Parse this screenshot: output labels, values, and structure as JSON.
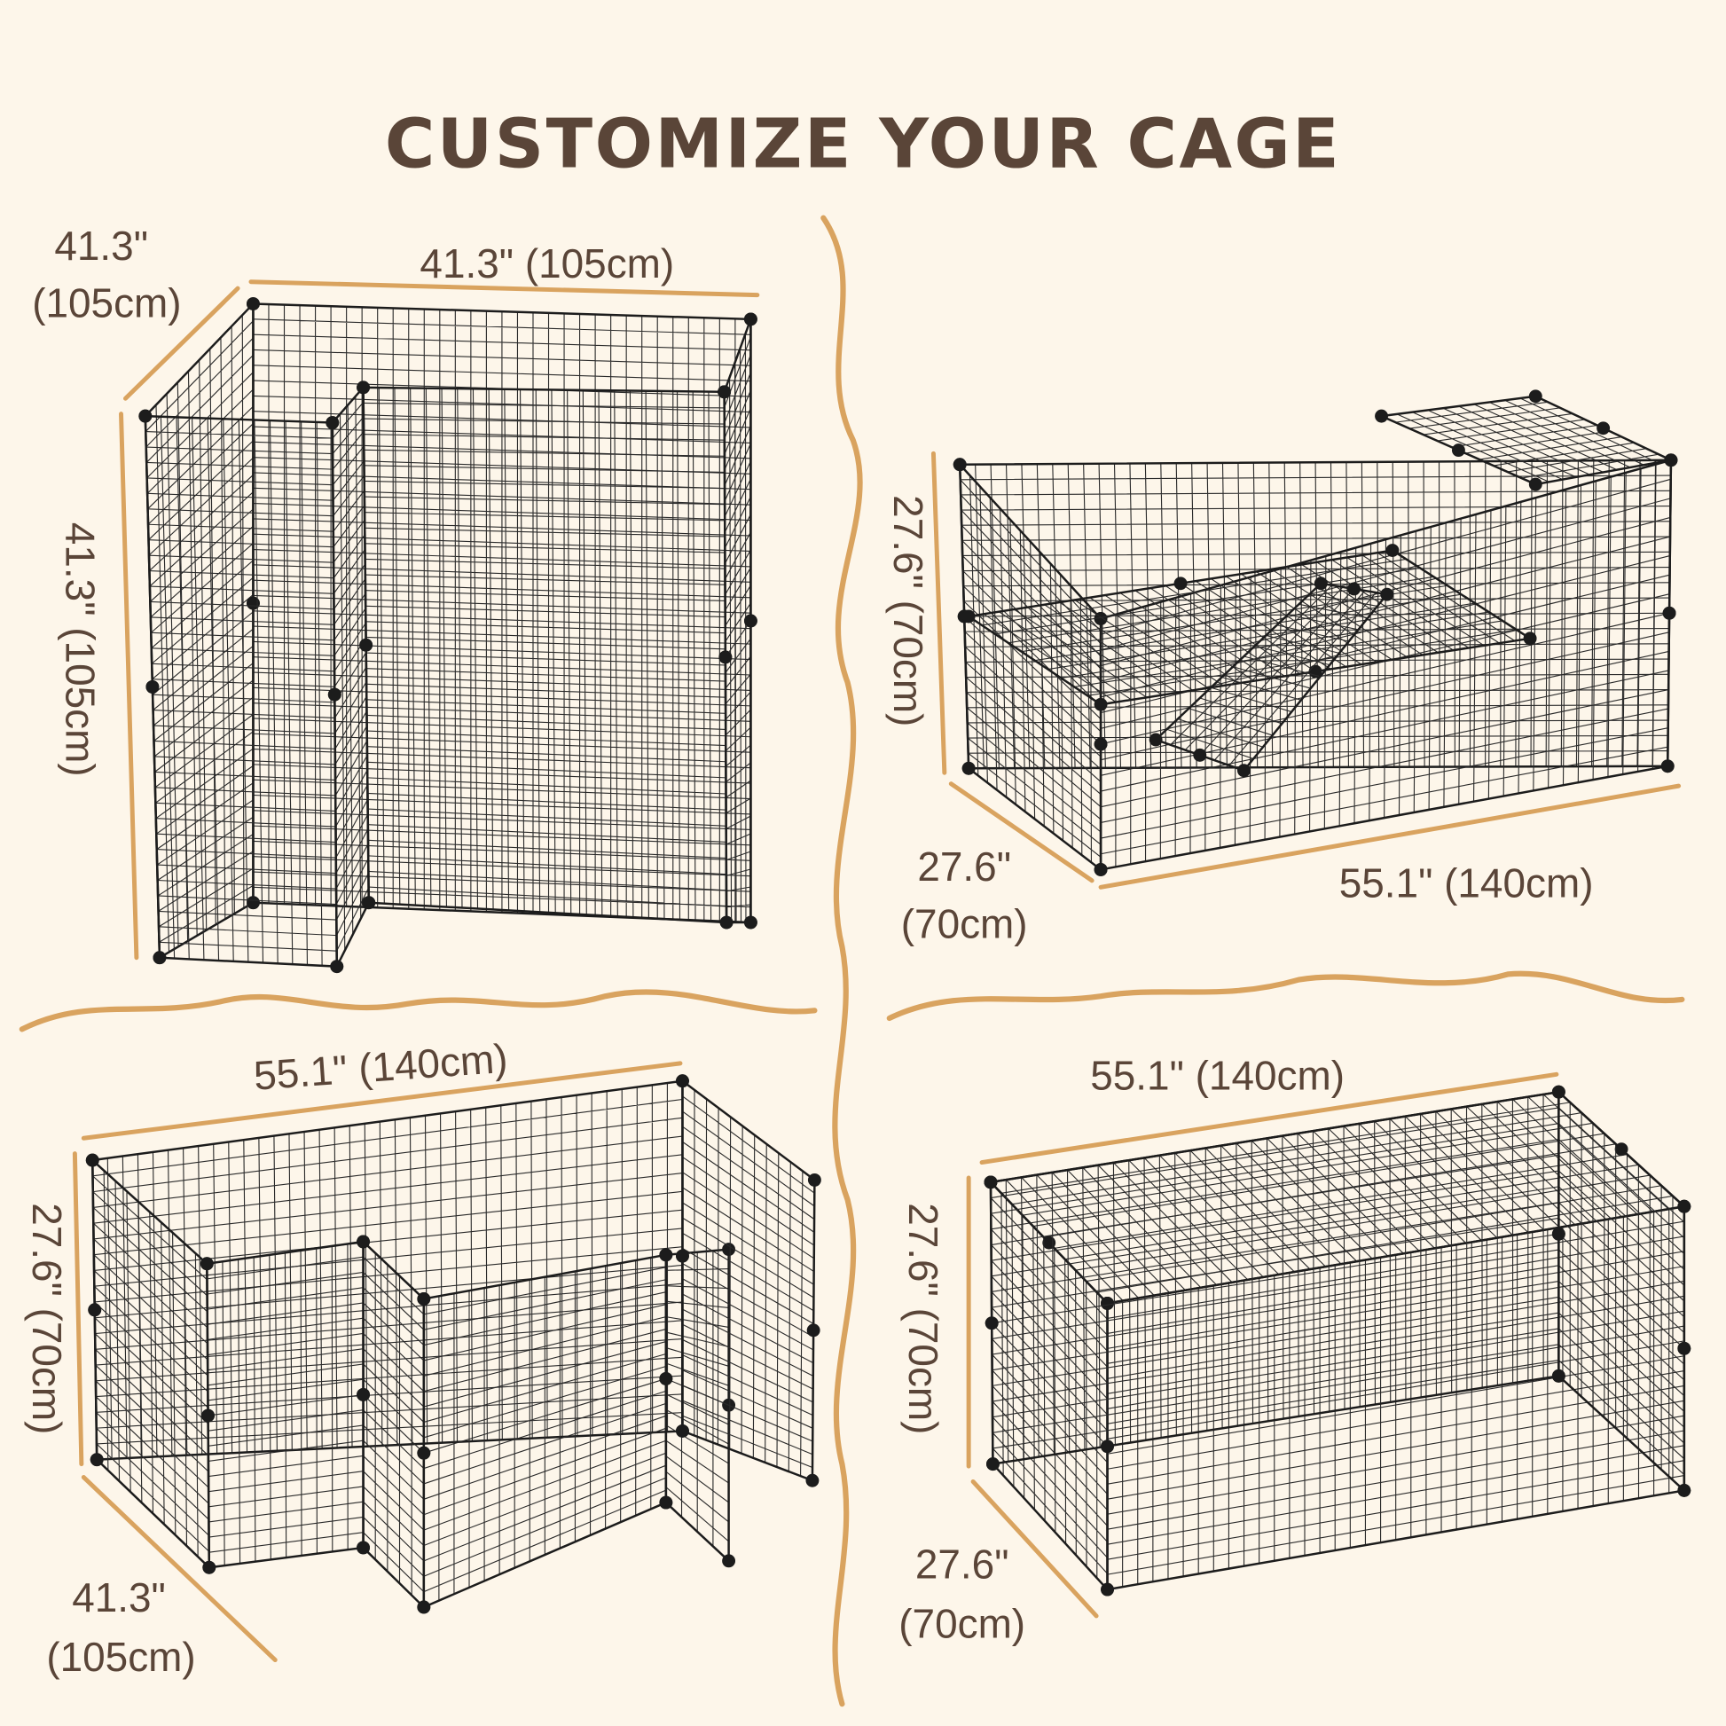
{
  "title": "CUSTOMIZE YOUR CAGE",
  "colors": {
    "background": "#fdf6ea",
    "text": "#5a4538",
    "accent": "#d9a35f",
    "wire": "#1c1c1c"
  },
  "configurations": [
    {
      "depth_in": "41.3\"",
      "depth_cm": "(105cm)",
      "width": "41.3\" (105cm)",
      "height": "41.3\" (105cm)"
    },
    {
      "height": "27.6\" (70cm)",
      "depth_in": "27.6\"",
      "depth_cm": "(70cm)",
      "width": "55.1\" (140cm)"
    },
    {
      "width": "55.1\" (140cm)",
      "height": "27.6\" (70cm)",
      "depth_in": "41.3\"",
      "depth_cm": "(105cm)"
    },
    {
      "width": "55.1\" (140cm)",
      "height": "27.6\" (70cm)",
      "depth_in": "27.6\"",
      "depth_cm": "(70cm)"
    }
  ]
}
